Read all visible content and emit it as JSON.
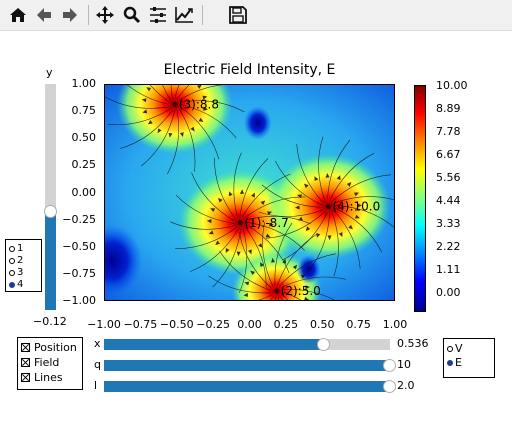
{
  "toolbar": {
    "buttons": [
      {
        "icon": "home-icon",
        "name": "home-button"
      },
      {
        "icon": "back-arrow-icon",
        "name": "back-button"
      },
      {
        "icon": "forward-arrow-icon",
        "name": "forward-button"
      },
      {
        "icon": "pan-move-icon",
        "name": "pan-button"
      },
      {
        "icon": "zoom-magnifier-icon",
        "name": "zoom-button"
      },
      {
        "icon": "subplot-sliders-icon",
        "name": "configure-subplots-button"
      },
      {
        "icon": "edit-axis-chart-icon",
        "name": "edit-axes-button"
      },
      {
        "icon": "save-floppy-icon",
        "name": "save-button"
      }
    ]
  },
  "y_slider": {
    "label": "y",
    "value": "−0.12",
    "fraction": 0.44
  },
  "charges": {
    "options": [
      "1",
      "2",
      "3",
      "4"
    ],
    "selected": "4"
  },
  "plot": {
    "title": "Electric Field Intensity, E",
    "y_ticks": [
      "1.00",
      "0.75",
      "0.50",
      "0.25",
      "0.00",
      "−0.25",
      "−0.50",
      "−0.75",
      "−1.00"
    ],
    "x_ticks": [
      "−1.00",
      "−0.75",
      "−0.50",
      "−0.25",
      "0.00",
      "0.25",
      "0.50",
      "0.75",
      "1.00"
    ],
    "charge_labels": [
      {
        "text": "(3):8.8",
        "x": -0.52,
        "y": 0.82
      },
      {
        "text": "(1):-8.7",
        "x": -0.07,
        "y": -0.27
      },
      {
        "text": "(4):10.0",
        "x": 0.536,
        "y": -0.12
      },
      {
        "text": "(2):5.0",
        "x": 0.18,
        "y": -0.9
      }
    ],
    "colorbar_ticks": [
      "10.00",
      "8.89",
      "7.78",
      "6.67",
      "5.56",
      "4.44",
      "3.33",
      "2.22",
      "1.11",
      "0.00"
    ],
    "colorbar_range": [
      0,
      10
    ]
  },
  "display_options": {
    "items": [
      {
        "label": "Position",
        "checked": true
      },
      {
        "label": "Field",
        "checked": true
      },
      {
        "label": "Lines",
        "checked": true
      }
    ]
  },
  "sliders": [
    {
      "label": "x",
      "value": "0.536",
      "fraction": 0.768
    },
    {
      "label": "q",
      "value": "10",
      "fraction": 1.0
    },
    {
      "label": "l",
      "value": "2.0",
      "fraction": 1.0
    }
  ],
  "view_mode": {
    "options": [
      "V",
      "E"
    ],
    "selected": "E"
  },
  "colors": {
    "slider_fill": "#1f77b4",
    "slider_track": "#d3d3d3"
  }
}
